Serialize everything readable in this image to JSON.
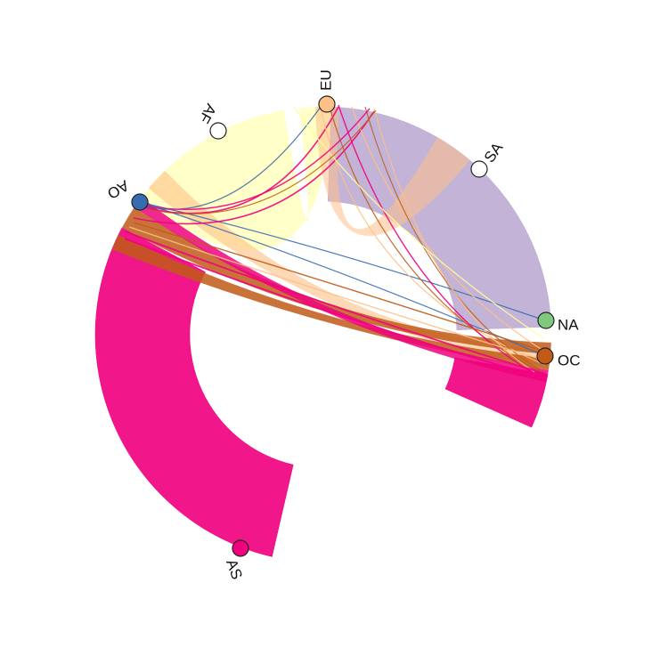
{
  "diagram": {
    "type": "chord",
    "nodes": [
      {
        "id": "eu",
        "label": "EU",
        "color": "#FDC086"
      },
      {
        "id": "af",
        "label": "AF",
        "color": "#FFFF99"
      },
      {
        "id": "ao",
        "label": "AO",
        "color": "#386CB0"
      },
      {
        "id": "as",
        "label": "AS",
        "color": "#F0027F"
      },
      {
        "id": "oc",
        "label": "OC",
        "color": "#BF5B17"
      },
      {
        "id": "na",
        "label": "NA",
        "color": "#7FC97F"
      },
      {
        "id": "sa",
        "label": "SA",
        "color": "#BEAED4"
      }
    ],
    "node_outline_color": "#222222",
    "unmarked_node_fill": "#FFFFFF"
  }
}
